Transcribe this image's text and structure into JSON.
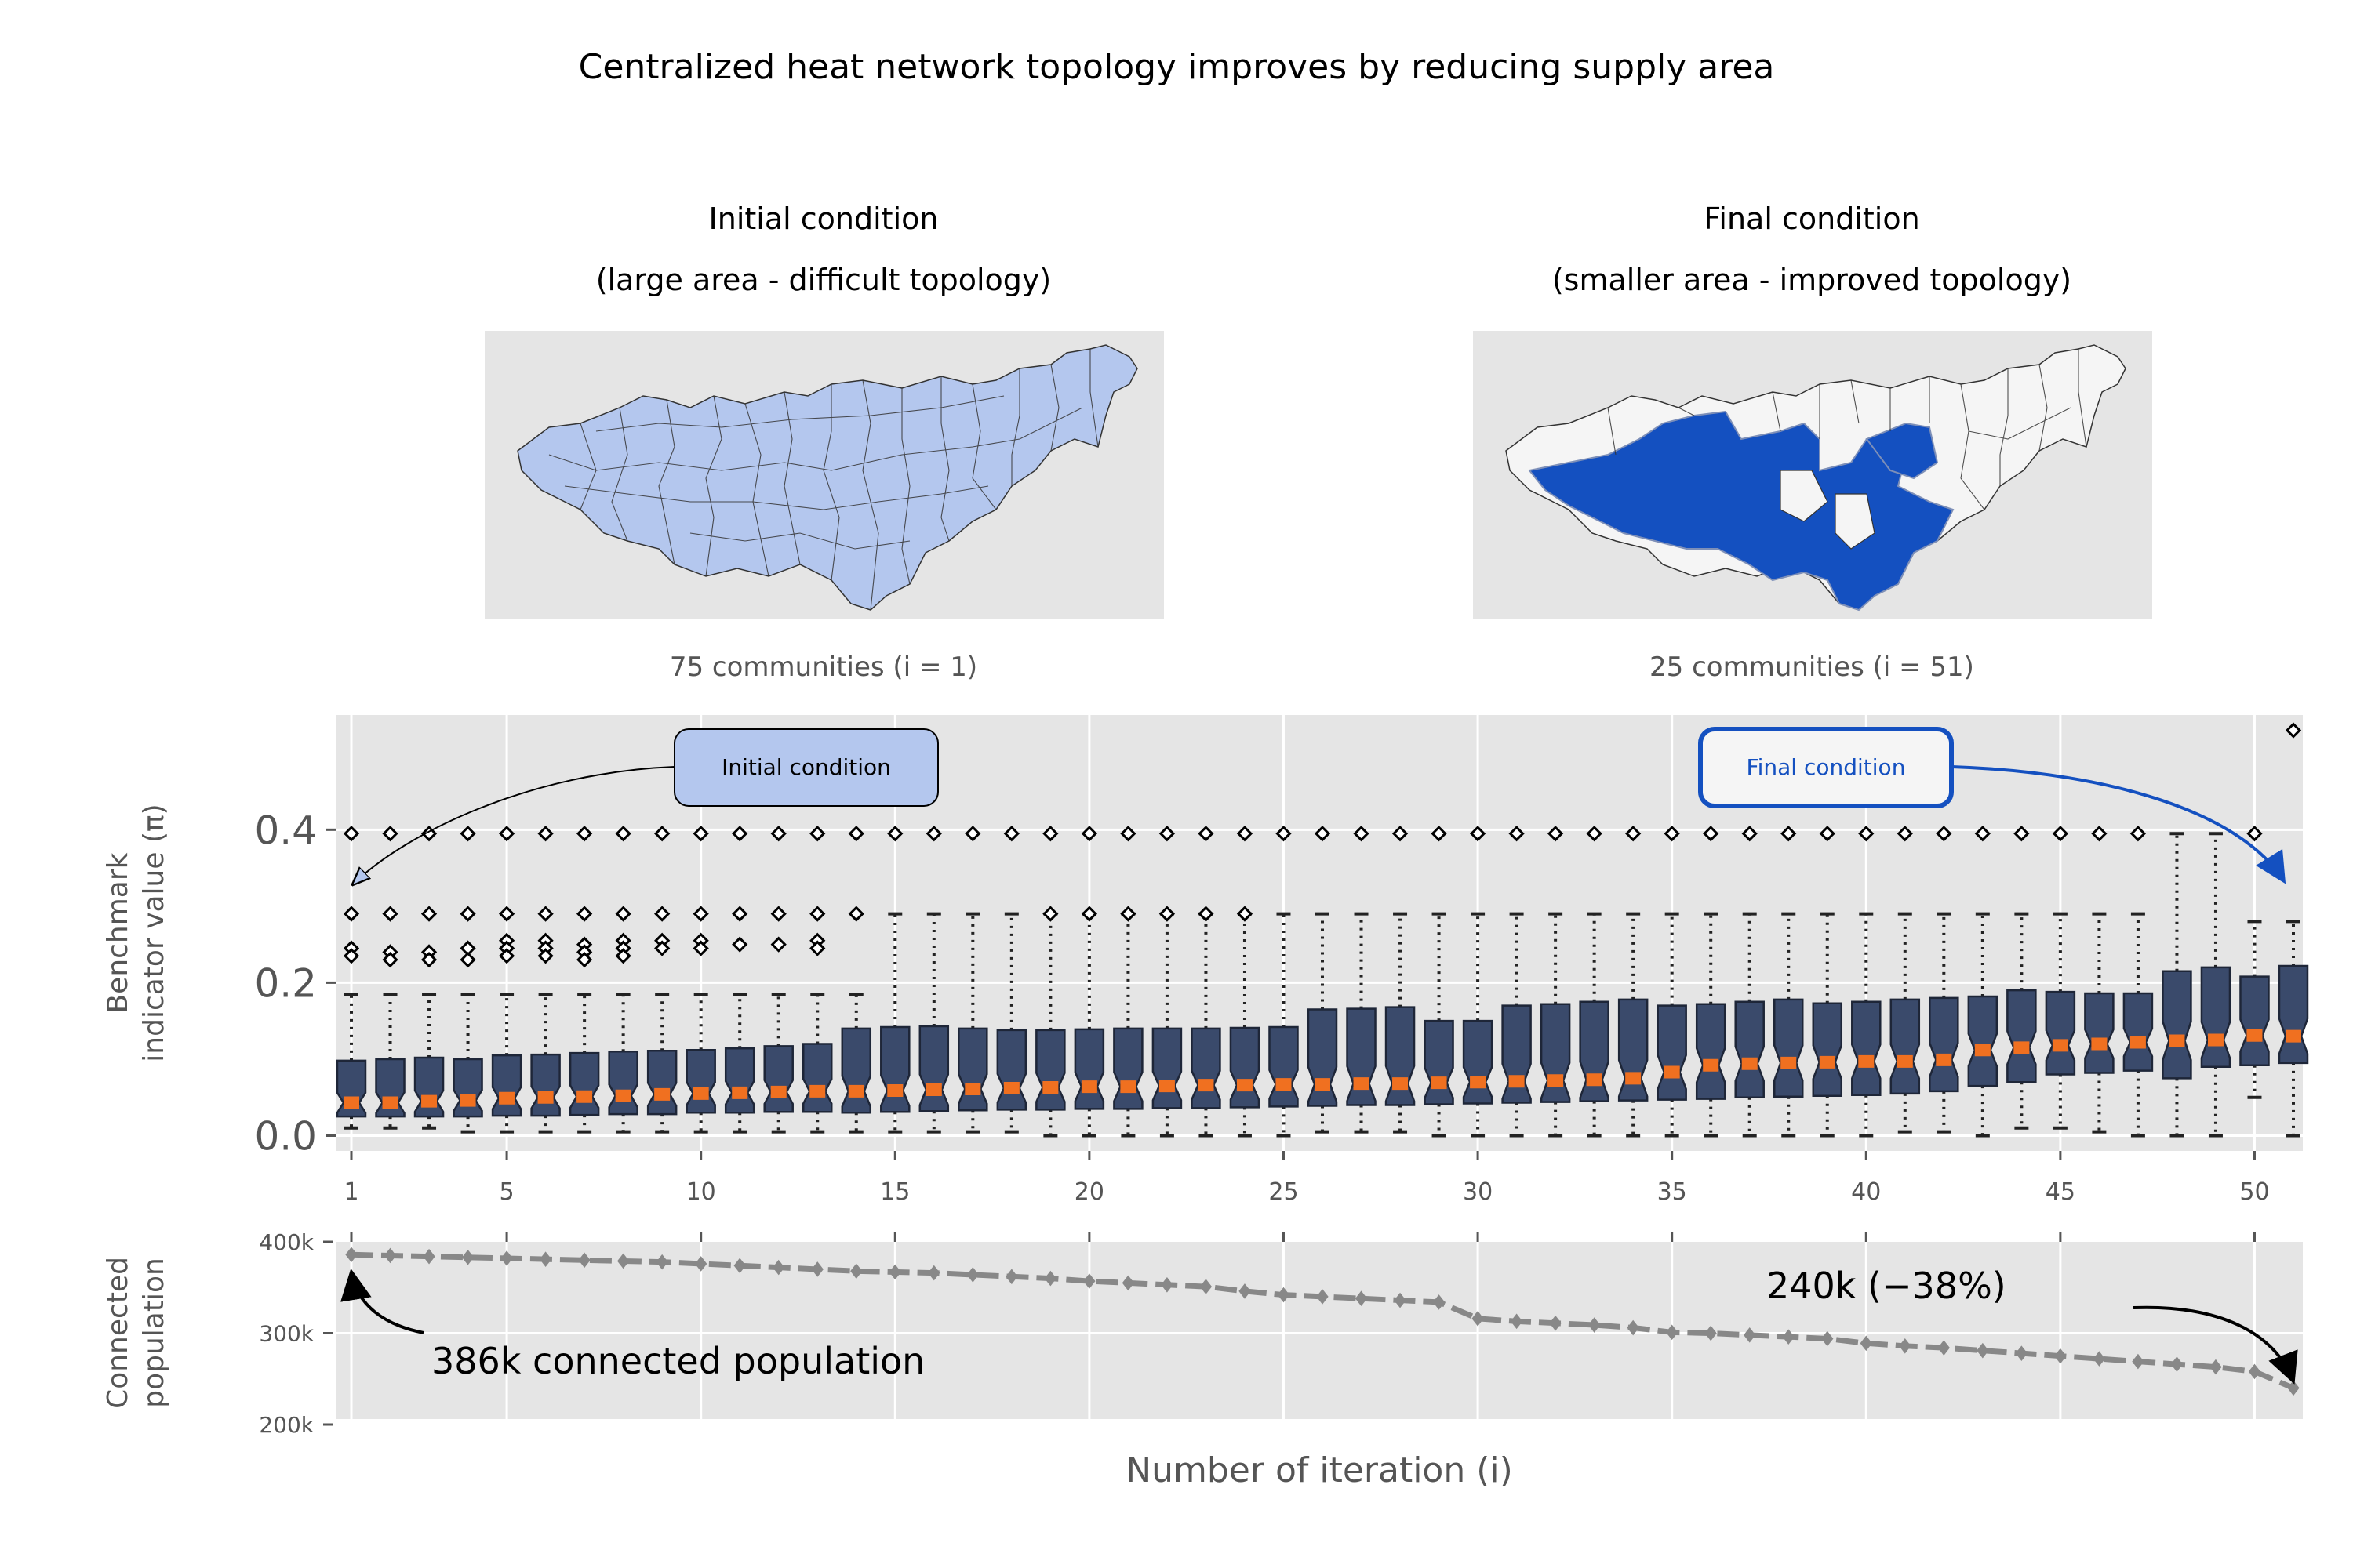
{
  "figure": {
    "title": "Centralized heat network topology improves by reducing supply area"
  },
  "maps": {
    "initial": {
      "title_line1": "Initial condition",
      "title_line2": "(large area - difficult topology)",
      "caption": "75 communities (i = 1)",
      "fill_color": "#b4c7ee"
    },
    "final": {
      "title_line1": "Final condition",
      "title_line2": "(smaller area - improved topology)",
      "caption": "25 communities (i = 51)",
      "fill_color": "#1450c0"
    }
  },
  "chart_data": [
    {
      "type": "box",
      "ylabel_line1": "Benchmark",
      "ylabel_line2": "indicator value (π)",
      "ylim": [
        -0.02,
        0.55
      ],
      "yticks": [
        "0.0",
        "0.2",
        "0.4"
      ],
      "x": [
        1,
        2,
        3,
        4,
        5,
        6,
        7,
        8,
        9,
        10,
        11,
        12,
        13,
        14,
        15,
        16,
        17,
        18,
        19,
        20,
        21,
        22,
        23,
        24,
        25,
        26,
        27,
        28,
        29,
        30,
        31,
        32,
        33,
        34,
        35,
        36,
        37,
        38,
        39,
        40,
        41,
        42,
        43,
        44,
        45,
        46,
        47,
        48,
        49,
        50,
        51
      ],
      "xticks": [
        "1",
        "5",
        "10",
        "15",
        "20",
        "25",
        "30",
        "35",
        "40",
        "45",
        "50"
      ],
      "grid": true,
      "box_color": "#3a4a6b",
      "median_color": "#f07020",
      "medians": [
        0.043,
        0.043,
        0.045,
        0.046,
        0.049,
        0.05,
        0.051,
        0.052,
        0.054,
        0.055,
        0.056,
        0.057,
        0.058,
        0.058,
        0.059,
        0.06,
        0.061,
        0.062,
        0.063,
        0.064,
        0.064,
        0.065,
        0.066,
        0.066,
        0.067,
        0.067,
        0.068,
        0.068,
        0.069,
        0.07,
        0.071,
        0.072,
        0.073,
        0.075,
        0.083,
        0.092,
        0.094,
        0.095,
        0.096,
        0.097,
        0.097,
        0.099,
        0.112,
        0.115,
        0.118,
        0.12,
        0.122,
        0.124,
        0.125,
        0.131,
        0.13
      ],
      "q1": [
        0.025,
        0.025,
        0.025,
        0.025,
        0.026,
        0.026,
        0.027,
        0.028,
        0.028,
        0.03,
        0.03,
        0.031,
        0.031,
        0.03,
        0.031,
        0.032,
        0.033,
        0.034,
        0.034,
        0.035,
        0.035,
        0.036,
        0.036,
        0.037,
        0.038,
        0.039,
        0.04,
        0.04,
        0.041,
        0.042,
        0.043,
        0.044,
        0.045,
        0.046,
        0.047,
        0.048,
        0.05,
        0.051,
        0.052,
        0.053,
        0.055,
        0.058,
        0.065,
        0.07,
        0.08,
        0.082,
        0.085,
        0.075,
        0.09,
        0.092,
        0.095
      ],
      "q3": [
        0.098,
        0.1,
        0.102,
        0.1,
        0.105,
        0.106,
        0.108,
        0.11,
        0.111,
        0.112,
        0.114,
        0.117,
        0.12,
        0.14,
        0.142,
        0.143,
        0.14,
        0.138,
        0.138,
        0.139,
        0.14,
        0.14,
        0.14,
        0.141,
        0.142,
        0.165,
        0.166,
        0.168,
        0.15,
        0.15,
        0.17,
        0.172,
        0.175,
        0.178,
        0.17,
        0.172,
        0.175,
        0.178,
        0.173,
        0.175,
        0.178,
        0.18,
        0.182,
        0.19,
        0.188,
        0.186,
        0.186,
        0.215,
        0.22,
        0.208,
        0.222
      ],
      "whisker_low": [
        0.01,
        0.01,
        0.01,
        0.005,
        0.005,
        0.005,
        0.005,
        0.005,
        0.005,
        0.005,
        0.005,
        0.005,
        0.005,
        0.005,
        0.005,
        0.005,
        0.005,
        0.005,
        0.0,
        0.0,
        0.0,
        0.0,
        0.0,
        0.0,
        0.0,
        0.005,
        0.005,
        0.005,
        0.0,
        0.0,
        0.0,
        0.0,
        0.0,
        0.0,
        0.0,
        0.0,
        0.0,
        0.0,
        0.0,
        0.0,
        0.005,
        0.005,
        0.0,
        0.01,
        0.01,
        0.005,
        0.0,
        0.0,
        0.0,
        0.05,
        0.0
      ],
      "whisker_high": [
        0.185,
        0.185,
        0.185,
        0.185,
        0.185,
        0.185,
        0.185,
        0.185,
        0.185,
        0.185,
        0.185,
        0.185,
        0.185,
        0.185,
        0.29,
        0.29,
        0.29,
        0.29,
        0.29,
        0.29,
        0.29,
        0.29,
        0.29,
        0.29,
        0.29,
        0.29,
        0.29,
        0.29,
        0.29,
        0.29,
        0.29,
        0.29,
        0.29,
        0.29,
        0.29,
        0.29,
        0.29,
        0.29,
        0.29,
        0.29,
        0.29,
        0.29,
        0.29,
        0.29,
        0.29,
        0.29,
        0.29,
        0.395,
        0.395,
        0.28,
        0.28
      ],
      "outliers": [
        [
          0.395,
          0.29,
          0.245,
          0.235
        ],
        [
          0.395,
          0.29,
          0.24,
          0.23
        ],
        [
          0.395,
          0.29,
          0.24,
          0.23
        ],
        [
          0.395,
          0.29,
          0.245,
          0.23
        ],
        [
          0.395,
          0.29,
          0.255,
          0.245,
          0.235
        ],
        [
          0.395,
          0.29,
          0.255,
          0.245,
          0.235
        ],
        [
          0.395,
          0.29,
          0.25,
          0.24,
          0.23
        ],
        [
          0.395,
          0.29,
          0.255,
          0.245,
          0.235
        ],
        [
          0.395,
          0.29,
          0.255,
          0.245
        ],
        [
          0.395,
          0.29,
          0.255,
          0.245
        ],
        [
          0.395,
          0.29,
          0.25
        ],
        [
          0.395,
          0.29,
          0.25
        ],
        [
          0.395,
          0.29,
          0.255,
          0.245
        ],
        [
          0.395,
          0.29
        ],
        [
          0.395
        ],
        [
          0.395
        ],
        [
          0.395
        ],
        [
          0.395
        ],
        [
          0.395,
          0.29
        ],
        [
          0.395,
          0.29
        ],
        [
          0.395,
          0.29
        ],
        [
          0.395,
          0.29
        ],
        [
          0.395,
          0.29
        ],
        [
          0.395,
          0.29
        ],
        [
          0.395
        ],
        [
          0.395
        ],
        [
          0.395
        ],
        [
          0.395
        ],
        [
          0.395
        ],
        [
          0.395
        ],
        [
          0.395
        ],
        [
          0.395
        ],
        [
          0.395
        ],
        [
          0.395
        ],
        [
          0.395
        ],
        [
          0.395
        ],
        [
          0.395
        ],
        [
          0.395
        ],
        [
          0.395
        ],
        [
          0.395
        ],
        [
          0.395
        ],
        [
          0.395
        ],
        [
          0.395
        ],
        [
          0.395
        ],
        [
          0.395
        ],
        [
          0.395
        ],
        [
          0.395
        ],
        [],
        [],
        [
          0.395
        ],
        [
          0.53
        ]
      ],
      "annotations": {
        "initial_label": "Initial condition",
        "final_label": "Final condition"
      }
    },
    {
      "type": "line",
      "ylabel_line1": "Connected",
      "ylabel_line2": "population",
      "xlabel": "Number of iteration (i)",
      "ylim": [
        200000,
        400000
      ],
      "yticks": [
        "200k",
        "300k",
        "400k"
      ],
      "x": [
        1,
        2,
        3,
        4,
        5,
        6,
        7,
        8,
        9,
        10,
        11,
        12,
        13,
        14,
        15,
        16,
        17,
        18,
        19,
        20,
        21,
        22,
        23,
        24,
        25,
        26,
        27,
        28,
        29,
        30,
        31,
        32,
        33,
        34,
        35,
        36,
        37,
        38,
        39,
        40,
        41,
        42,
        43,
        44,
        45,
        46,
        47,
        48,
        49,
        50,
        51
      ],
      "y": [
        386000,
        385000,
        384000,
        383000,
        382000,
        381000,
        380000,
        379000,
        378000,
        376000,
        374000,
        372000,
        370000,
        368000,
        367000,
        366000,
        364000,
        362000,
        360000,
        357000,
        355000,
        353000,
        351000,
        346000,
        342000,
        340000,
        338000,
        336000,
        334000,
        316000,
        313000,
        311000,
        309000,
        306000,
        301000,
        300000,
        298000,
        296000,
        294000,
        289000,
        286000,
        284000,
        281000,
        278000,
        275000,
        272000,
        269000,
        266000,
        263000,
        258000,
        240000
      ],
      "line_color": "#888888",
      "annotations": {
        "start_label": "386k connected population",
        "end_label": "240k (−38%)"
      }
    }
  ]
}
